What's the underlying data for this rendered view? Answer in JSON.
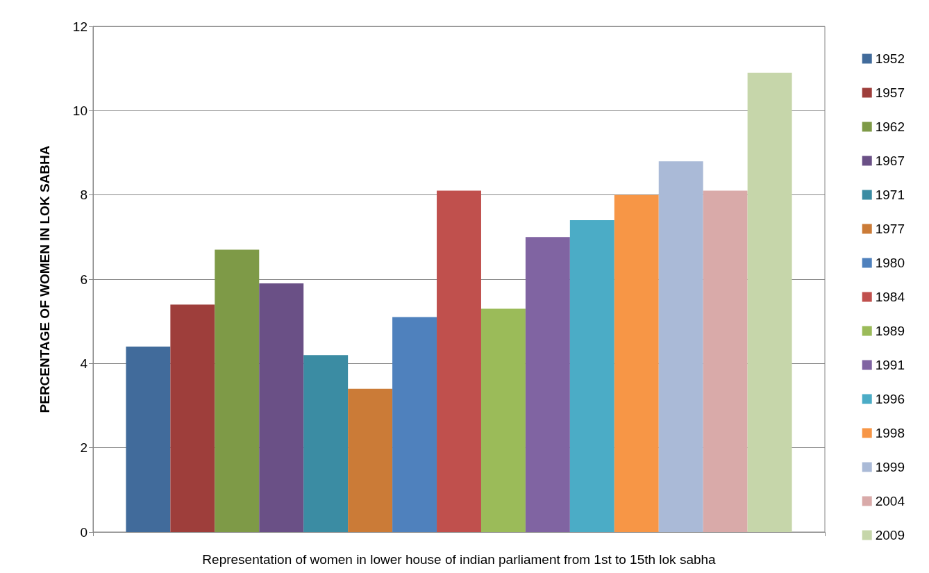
{
  "chart_data": {
    "type": "bar",
    "xlabel": "Representation of women in lower house of indian parliament from 1st to 15th lok sabha",
    "ylabel": "PERCENTAGE OF WOMEN IN LOK SABHA",
    "categories": [
      null
    ],
    "ylim": [
      0,
      12
    ],
    "yticks": [
      0,
      2,
      4,
      6,
      8,
      10,
      12
    ],
    "grid": "y",
    "legend": "right",
    "series": [
      {
        "name": "1952",
        "color": "#416b9b",
        "values": [
          4.4
        ]
      },
      {
        "name": "1957",
        "color": "#9e3e3b",
        "values": [
          5.4
        ]
      },
      {
        "name": "1962",
        "color": "#7e9a47",
        "values": [
          6.7
        ]
      },
      {
        "name": "1967",
        "color": "#6a5086",
        "values": [
          5.9
        ]
      },
      {
        "name": "1971",
        "color": "#3b8ca3",
        "values": [
          4.2
        ]
      },
      {
        "name": "1977",
        "color": "#cb7b37",
        "values": [
          3.4
        ]
      },
      {
        "name": "1980",
        "color": "#4f81bd",
        "values": [
          5.1
        ]
      },
      {
        "name": "1984",
        "color": "#c0504d",
        "values": [
          8.1
        ]
      },
      {
        "name": "1989",
        "color": "#9bbb59",
        "values": [
          5.3
        ]
      },
      {
        "name": "1991",
        "color": "#8064a2",
        "values": [
          7.0
        ]
      },
      {
        "name": "1996",
        "color": "#4bacc6",
        "values": [
          7.4
        ]
      },
      {
        "name": "1998",
        "color": "#f79646",
        "values": [
          8.0
        ]
      },
      {
        "name": "1999",
        "color": "#aabad7",
        "values": [
          8.8
        ]
      },
      {
        "name": "2004",
        "color": "#d9aaa9",
        "values": [
          8.1
        ]
      },
      {
        "name": "2009",
        "color": "#c6d6aa",
        "values": [
          10.9
        ]
      }
    ]
  }
}
